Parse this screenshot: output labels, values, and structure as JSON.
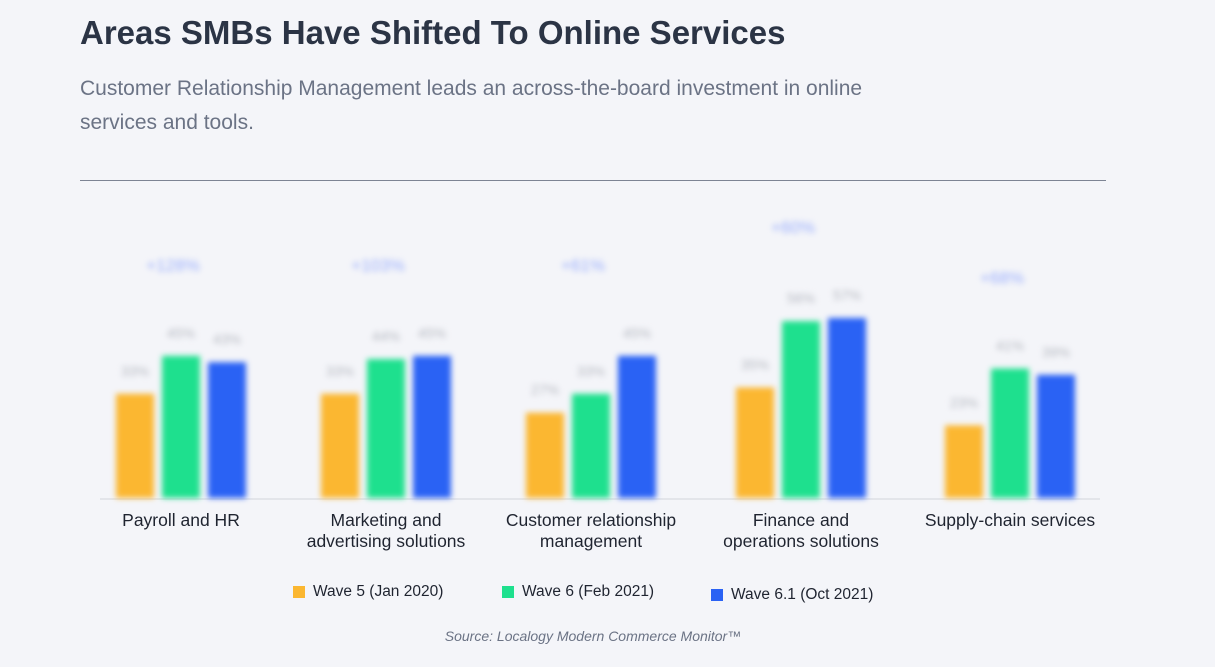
{
  "title": "Areas SMBs Have Shifted To Online Services",
  "subtitle": "Customer Relationship Management leads an across-the-board investment in online services and tools.",
  "source": "Source: Localogy Modern Commerce Monitor™",
  "colors": {
    "wave5": "#fbb731",
    "wave6": "#1ee08e",
    "wave61": "#2a62f4",
    "growth": "#9aaefc",
    "value_label": "#b5b8c0"
  },
  "chart_data": {
    "type": "bar",
    "categories": [
      "Payroll and HR",
      "Marketing and advertising solutions",
      "Customer relationship management",
      "Finance and operations solutions",
      "Supply-chain services"
    ],
    "category_lines": [
      [
        "Payroll and HR"
      ],
      [
        "Marketing and",
        "advertising solutions"
      ],
      [
        "Customer relationship",
        "management"
      ],
      [
        "Finance and",
        "operations solutions"
      ],
      [
        "Supply-chain services"
      ]
    ],
    "series": [
      {
        "name": "Wave 5 (Jan 2020)",
        "values": [
          33,
          33,
          27,
          35,
          23
        ]
      },
      {
        "name": "Wave 6 (Feb 2021)",
        "values": [
          45,
          44,
          33,
          56,
          41
        ]
      },
      {
        "name": "Wave 6.1 (Oct 2021)",
        "values": [
          43,
          45,
          45,
          57,
          39
        ]
      }
    ],
    "growth_labels": [
      "+128%",
      "+103%",
      "+61%",
      "+60%",
      "+68%"
    ],
    "ylim": [
      0,
      70
    ],
    "grid": false,
    "legend_position": "bottom"
  }
}
